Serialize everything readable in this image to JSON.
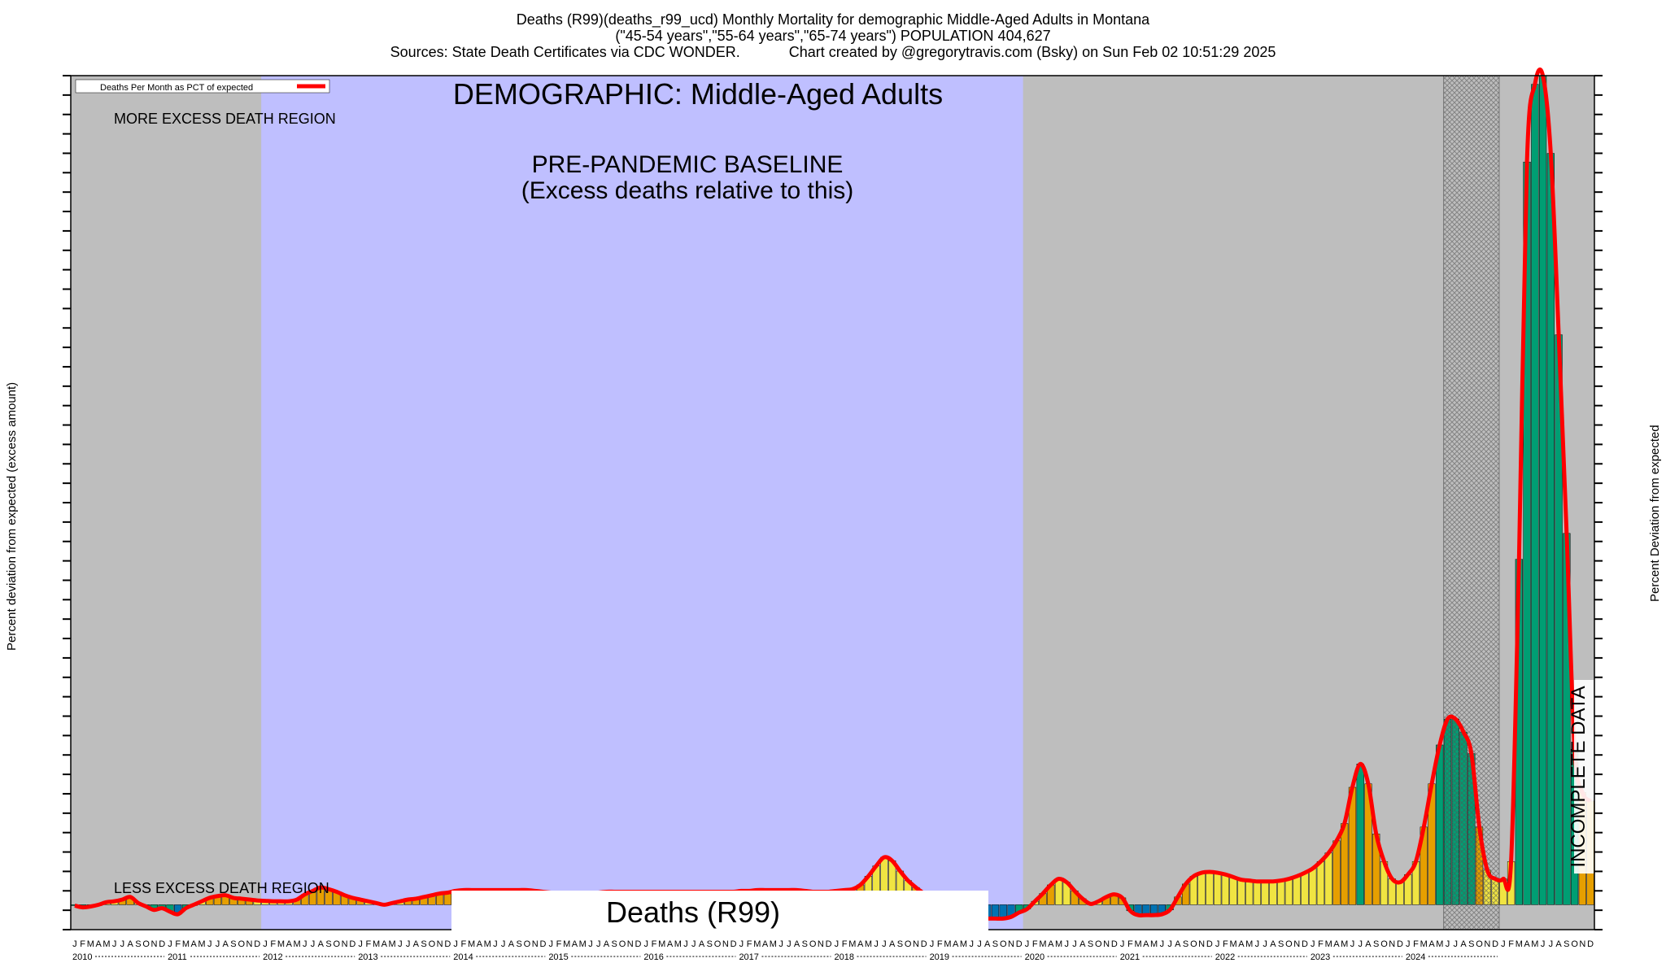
{
  "header": {
    "line1": "Deaths (R99)(deaths_r99_ucd) Monthly Mortality for demographic Middle-Aged Adults in Montana",
    "line2": "(\"45-54 years\",\"55-64 years\",\"65-74 years\") POPULATION 404,627",
    "line3a": "Sources: State Death Certificates via CDC WONDER.",
    "line3b": "Chart created by @gregorytravis.com (Bsky) on Sun Feb 02 10:51:29 2025"
  },
  "axes": {
    "left_label": "Percent deviation from expected (excess amount)",
    "right_label": "Percent Deviation from expected"
  },
  "legend": {
    "label": "Deaths Per Month as PCT of expected",
    "color": "#ff0000"
  },
  "annotations": {
    "demographic": "DEMOGRAPHIC: Middle-Aged Adults",
    "more_excess": "MORE EXCESS DEATH REGION",
    "less_excess": "LESS EXCESS DEATH REGION",
    "baseline_line1": "PRE-PANDEMIC BASELINE",
    "baseline_line2": "(Excess deaths relative to this)",
    "incomplete": "INCOMPLETE DATA",
    "watermark": "Deaths (R99)"
  },
  "colors": {
    "plot_bg": "#bebebe",
    "baseline_bg": "#bfbfff",
    "line": "#ff0000",
    "green": "#009e73",
    "orange": "#e69f00",
    "yellow": "#f0e442",
    "blue": "#0072b2"
  },
  "chart_data": {
    "type": "bar",
    "x_start": "2010-01",
    "x_end": "2024-12",
    "month_letters": [
      "J",
      "F",
      "M",
      "A",
      "M",
      "J",
      "J",
      "A",
      "S",
      "O",
      "N",
      "D"
    ],
    "years": [
      "2010",
      "2011",
      "2012",
      "2013",
      "2014",
      "2015",
      "2016",
      "2017",
      "2018",
      "2019",
      "2020",
      "2021",
      "2022",
      "2023",
      "2024"
    ],
    "baseline_period": [
      "2012-01",
      "2019-12"
    ],
    "incomplete_period": [
      "2024-06",
      "2024-12"
    ],
    "ylim": [
      -100,
      9600
    ],
    "series": [
      {
        "values": [
          -10,
          -30,
          -20,
          0,
          30,
          40,
          60,
          90,
          20,
          -20,
          -60,
          -40,
          -80,
          -110,
          -40,
          0,
          40,
          80,
          100,
          110,
          80,
          70,
          60,
          50,
          45,
          40,
          40,
          40,
          60,
          120,
          160,
          200,
          180,
          150,
          110,
          80,
          60,
          40,
          20,
          0,
          20,
          40,
          60,
          70,
          90,
          110,
          130,
          140,
          160,
          170,
          170,
          170,
          170,
          170,
          170,
          170,
          170,
          170,
          160,
          150,
          140,
          130,
          120,
          110,
          110,
          120,
          140,
          150,
          150,
          150,
          150,
          150,
          150,
          150,
          150,
          150,
          150,
          150,
          150,
          150,
          150,
          150,
          150,
          150,
          160,
          160,
          170,
          170,
          170,
          170,
          170,
          170,
          160,
          150,
          150,
          150,
          160,
          170,
          180,
          230,
          330,
          450,
          550,
          510,
          390,
          280,
          200,
          130,
          60,
          -10,
          -60,
          -110,
          -150,
          -160,
          -160,
          -160,
          -160,
          -160,
          -140,
          -90,
          -50,
          40,
          130,
          230,
          300,
          260,
          160,
          70,
          10,
          40,
          90,
          120,
          80,
          -70,
          -120,
          -120,
          -120,
          -110,
          -60,
          90,
          240,
          330,
          370,
          380,
          370,
          350,
          320,
          290,
          280,
          270,
          270,
          270,
          280,
          300,
          330,
          370,
          420,
          500,
          600,
          740,
          940,
          1360,
          1630,
          1400,
          820,
          500,
          300,
          260,
          350,
          500,
          900,
          1400,
          1850,
          2150,
          2150,
          2000,
          1750,
          900,
          400,
          300,
          300,
          500,
          4000,
          8600,
          9500,
          9600,
          8700,
          6600,
          4300,
          1800,
          1300,
          1200
        ]
      }
    ]
  }
}
